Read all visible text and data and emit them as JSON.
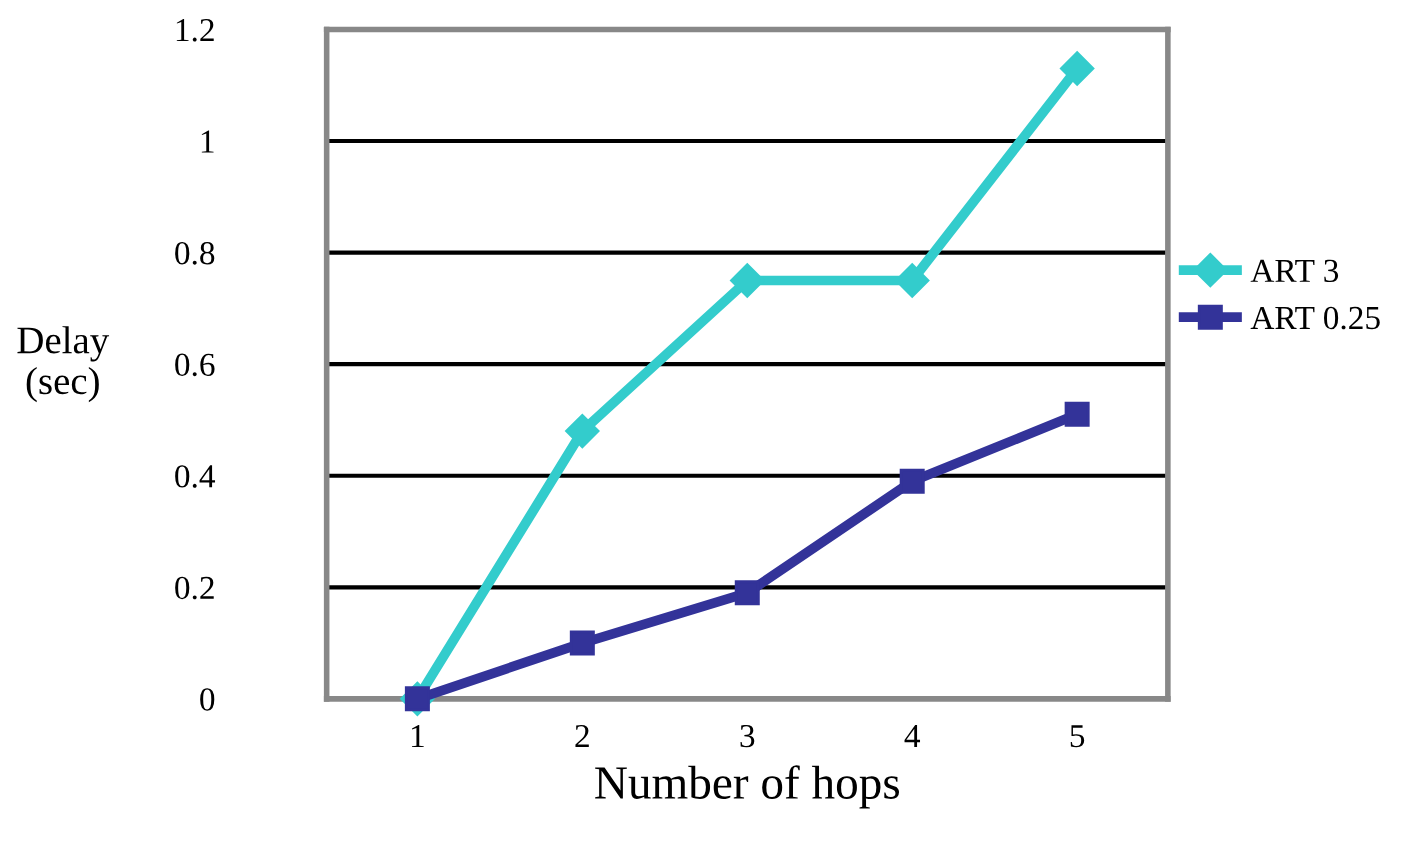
{
  "chart_data": {
    "type": "line",
    "xlabel": "Number of hops",
    "ylabel": "Delay\n(sec)",
    "categories": [
      "1",
      "2",
      "3",
      "4",
      "5"
    ],
    "series": [
      {
        "name": "ART 3",
        "color": "#33cccc",
        "marker": "diamond",
        "values": [
          0,
          0.48,
          0.75,
          0.75,
          1.13
        ]
      },
      {
        "name": "ART 0.25",
        "color": "#333399",
        "marker": "square",
        "values": [
          0,
          0.1,
          0.19,
          0.39,
          0.51
        ]
      }
    ],
    "ylim": [
      0,
      1.2
    ],
    "yticks": [
      0,
      0.2,
      0.4,
      0.6,
      0.8,
      1,
      1.2
    ],
    "grid": "y",
    "legend": "right",
    "line_style": "solid"
  }
}
